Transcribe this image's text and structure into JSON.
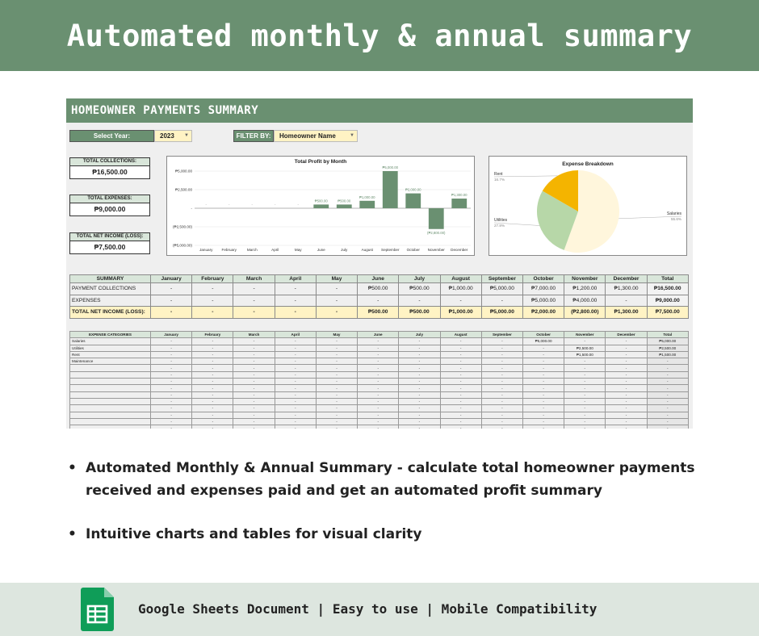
{
  "banner": {
    "title": "Automated monthly & annual summary"
  },
  "sheet": {
    "title": "HOMEOWNER PAYMENTS SUMMARY",
    "select_year_label": "Select Year:",
    "select_year_value": "2023",
    "filter_label": "FILTER BY:",
    "filter_value": "Homeowner Name"
  },
  "kpis": {
    "collections_label": "TOTAL COLLECTIONS:",
    "collections_value": "₱16,500.00",
    "expenses_label": "TOTAL EXPENSES:",
    "expenses_value": "₱9,000.00",
    "net_label": "TOTAL NET INCOME (LOSS):",
    "net_value": "₱7,500.00"
  },
  "chart_data": [
    {
      "type": "bar",
      "title": "Total Profit by Month",
      "categories": [
        "January",
        "February",
        "March",
        "April",
        "May",
        "June",
        "July",
        "August",
        "September",
        "October",
        "November",
        "December"
      ],
      "values": [
        0,
        0,
        0,
        0,
        0,
        500,
        500,
        1000,
        5000,
        2000,
        -2800,
        1300
      ],
      "data_labels": [
        "-",
        "-",
        "-",
        "-",
        "-",
        "₱500.00",
        "₱500.00",
        "₱1,000.00",
        "₱5,000.00",
        "₱2,000.00",
        "(₱2,800.00)",
        "₱1,300.00"
      ],
      "ylim": [
        -5000,
        5000
      ],
      "yticks": [
        "₱5,000.00",
        "₱2,500.00",
        "-",
        "(₱2,500.00)",
        "(₱5,000.00)"
      ],
      "ytick_values": [
        5000,
        2500,
        0,
        -2500,
        -5000
      ],
      "color": "#6a9071"
    },
    {
      "type": "pie",
      "title": "Expense Breakdown",
      "slices": [
        {
          "name": "Salaries",
          "value": 55.6,
          "label": "55.6%",
          "color": "#fff6dc"
        },
        {
          "name": "Utilities",
          "value": 27.8,
          "label": "27.8%",
          "color": "#b7d7a8"
        },
        {
          "name": "Rent",
          "value": 16.7,
          "label": "16.7%",
          "color": "#f4b400"
        }
      ]
    }
  ],
  "summary": {
    "header": [
      "SUMMARY",
      "January",
      "February",
      "March",
      "April",
      "May",
      "June",
      "July",
      "August",
      "September",
      "October",
      "November",
      "December",
      "Total"
    ],
    "rows": [
      [
        "PAYMENT COLLECTIONS",
        "-",
        "-",
        "-",
        "-",
        "-",
        "₱500.00",
        "₱500.00",
        "₱1,000.00",
        "₱5,000.00",
        "₱7,000.00",
        "₱1,200.00",
        "₱1,300.00",
        "₱16,500.00"
      ],
      [
        "EXPENSES",
        "-",
        "-",
        "-",
        "-",
        "-",
        "-",
        "-",
        "-",
        "-",
        "₱5,000.00",
        "₱4,000.00",
        "-",
        "₱9,000.00"
      ],
      [
        "TOTAL NET INCOME (LOSS):",
        "-",
        "-",
        "-",
        "-",
        "-",
        "₱500.00",
        "₱500.00",
        "₱1,000.00",
        "₱5,000.00",
        "₱2,000.00",
        "(₱2,800.00)",
        "₱1,300.00",
        "₱7,500.00"
      ]
    ]
  },
  "expenses": {
    "header": [
      "EXPENSE CATEGORIES",
      "January",
      "February",
      "March",
      "April",
      "May",
      "June",
      "July",
      "August",
      "September",
      "October",
      "November",
      "December",
      "Total"
    ],
    "rows": [
      [
        "Salaries",
        "-",
        "-",
        "-",
        "-",
        "-",
        "-",
        "-",
        "-",
        "-",
        "₱5,000.00",
        "-",
        "-",
        "₱5,000.00"
      ],
      [
        "Utilities",
        "-",
        "-",
        "-",
        "-",
        "-",
        "-",
        "-",
        "-",
        "-",
        "-",
        "₱2,500.00",
        "-",
        "₱2,500.00"
      ],
      [
        "Rent",
        "-",
        "-",
        "-",
        "-",
        "-",
        "-",
        "-",
        "-",
        "-",
        "-",
        "₱1,500.00",
        "-",
        "₱1,500.00"
      ],
      [
        "Maintenance",
        "-",
        "-",
        "-",
        "-",
        "-",
        "-",
        "-",
        "-",
        "-",
        "-",
        "-",
        "-",
        "-"
      ],
      [
        "",
        "-",
        "-",
        "-",
        "-",
        "-",
        "-",
        "-",
        "-",
        "-",
        "-",
        "-",
        "-",
        "-"
      ],
      [
        "",
        "-",
        "-",
        "-",
        "-",
        "-",
        "-",
        "-",
        "-",
        "-",
        "-",
        "-",
        "-",
        "-"
      ],
      [
        "",
        "-",
        "-",
        "-",
        "-",
        "-",
        "-",
        "-",
        "-",
        "-",
        "-",
        "-",
        "-",
        "-"
      ],
      [
        "",
        "-",
        "-",
        "-",
        "-",
        "-",
        "-",
        "-",
        "-",
        "-",
        "-",
        "-",
        "-",
        "-"
      ],
      [
        "",
        "-",
        "-",
        "-",
        "-",
        "-",
        "-",
        "-",
        "-",
        "-",
        "-",
        "-",
        "-",
        "-"
      ],
      [
        "",
        "-",
        "-",
        "-",
        "-",
        "-",
        "-",
        "-",
        "-",
        "-",
        "-",
        "-",
        "-",
        "-"
      ],
      [
        "",
        "-",
        "-",
        "-",
        "-",
        "-",
        "-",
        "-",
        "-",
        "-",
        "-",
        "-",
        "-",
        "-"
      ],
      [
        "",
        "-",
        "-",
        "-",
        "-",
        "-",
        "-",
        "-",
        "-",
        "-",
        "-",
        "-",
        "-",
        "-"
      ],
      [
        "",
        "-",
        "-",
        "-",
        "-",
        "-",
        "-",
        "-",
        "-",
        "-",
        "-",
        "-",
        "-",
        "-"
      ],
      [
        "",
        "-",
        "-",
        "-",
        "-",
        "-",
        "-",
        "-",
        "-",
        "-",
        "-",
        "-",
        "-",
        "-"
      ]
    ]
  },
  "bullets": [
    "Automated Monthly & Annual Summary - calculate total homeowner payments received and expenses paid and get an automated profit summary",
    "Intuitive charts and tables for visual clarity"
  ],
  "footer": {
    "text": "Google Sheets Document | Easy to use | Mobile Compatibility",
    "icon": "google-sheets-icon"
  }
}
